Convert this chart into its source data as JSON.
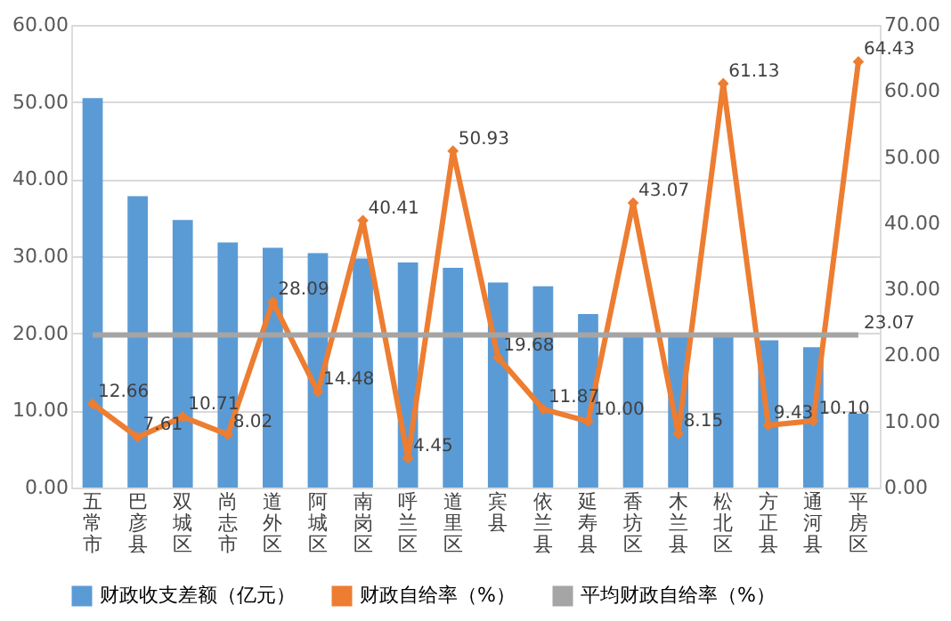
{
  "chart_data": {
    "type": "bar",
    "categories": [
      "五常市",
      "巴彦县",
      "双城区",
      "尚志市",
      "道外区",
      "阿城区",
      "南岗区",
      "呼兰区",
      "道里区",
      "宾县",
      "依兰县",
      "延寿县",
      "香坊区",
      "木兰县",
      "松北区",
      "方正县",
      "通河县",
      "平房区"
    ],
    "series": [
      {
        "name": "财政收支差额（亿元）",
        "color": "#5b9bd5",
        "values": [
          50.5,
          37.8,
          34.7,
          31.8,
          31.1,
          30.4,
          29.7,
          29.2,
          28.5,
          26.6,
          26.1,
          22.5,
          19.8,
          19.8,
          19.8,
          19.1,
          18.2,
          9.6
        ]
      },
      {
        "name": "财政自给率（%）",
        "type": "line",
        "axis": "y2",
        "color": "#ed7d31",
        "marker": "diamond",
        "values": [
          12.66,
          7.61,
          10.71,
          8.02,
          28.09,
          14.48,
          40.41,
          4.45,
          50.93,
          19.68,
          11.87,
          10.0,
          43.07,
          8.15,
          61.13,
          9.43,
          10.1,
          64.43
        ],
        "value_labels": [
          "12.66",
          "7.61",
          "10.71",
          "8.02",
          "28.09",
          "14.48",
          "40.41",
          "4.45",
          "50.93",
          "19.68",
          "11.87",
          "10.00",
          "43.07",
          "8.15",
          "61.13",
          "9.43",
          "10.10",
          "64.43"
        ]
      },
      {
        "name": "平均财政自给率（%）",
        "type": "line",
        "axis": "y2",
        "color": "#a5a5a5",
        "marker": "none",
        "values": [
          23.07,
          23.07,
          23.07,
          23.07,
          23.07,
          23.07,
          23.07,
          23.07,
          23.07,
          23.07,
          23.07,
          23.07,
          23.07,
          23.07,
          23.07,
          23.07,
          23.07,
          23.07
        ],
        "value_labels": [
          null,
          null,
          null,
          null,
          null,
          null,
          null,
          null,
          null,
          null,
          null,
          null,
          null,
          null,
          null,
          null,
          null,
          "23.07"
        ]
      }
    ],
    "ylim": [
      0,
      60
    ],
    "yticks": [
      {
        "value": 0,
        "label": "0.00"
      },
      {
        "value": 10,
        "label": "10.00"
      },
      {
        "value": 20,
        "label": "20.00"
      },
      {
        "value": 30,
        "label": "30.00"
      },
      {
        "value": 40,
        "label": "40.00"
      },
      {
        "value": 50,
        "label": "50.00"
      },
      {
        "value": 60,
        "label": "60.00"
      }
    ],
    "y2lim": [
      0,
      70
    ],
    "y2ticks": [
      {
        "value": 0,
        "label": "0.00"
      },
      {
        "value": 10,
        "label": "10.00"
      },
      {
        "value": 20,
        "label": "20.00"
      },
      {
        "value": 30,
        "label": "30.00"
      },
      {
        "value": 40,
        "label": "40.00"
      },
      {
        "value": 50,
        "label": "50.00"
      },
      {
        "value": 60,
        "label": "60.00"
      },
      {
        "value": 70,
        "label": "70.00"
      }
    ],
    "grid": "y",
    "legend": "bottom"
  }
}
